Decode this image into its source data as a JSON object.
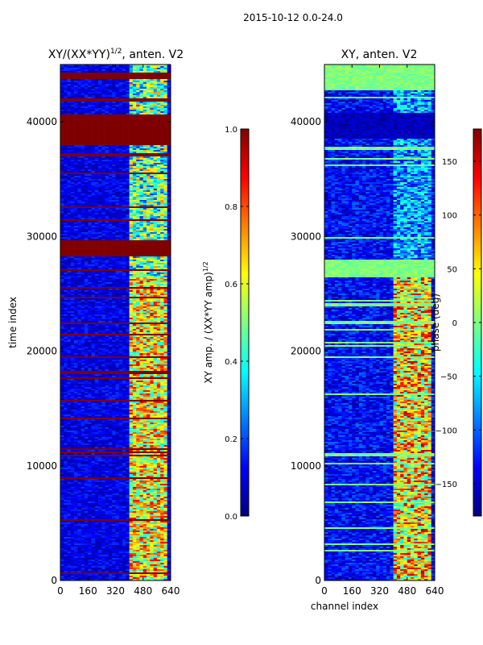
{
  "figure": {
    "suptitle": "2015-10-12 0.0-24.0"
  },
  "colors": {
    "jet": [
      "#00007f",
      "#0000ff",
      "#007fff",
      "#00ffff",
      "#7fff7f",
      "#ffff00",
      "#ff7f00",
      "#ff0000",
      "#7f0000"
    ]
  },
  "chart_data": [
    {
      "type": "heatmap",
      "title": "XY/(XX*YY)",
      "title_exponent": "1/2",
      "title_suffix": ", anten. V2",
      "xlabel": "",
      "ylabel": "time index",
      "xlim": [
        0,
        640
      ],
      "ylim": [
        0,
        45000
      ],
      "xticks": [
        0,
        160,
        320,
        480,
        640
      ],
      "yticks": [
        0,
        10000,
        20000,
        30000,
        40000
      ],
      "colorbar": {
        "label": "XY amp. / (XX*YY amp)",
        "label_exponent": "1/2",
        "range": [
          0.0,
          1.0
        ],
        "ticks": [
          "0.0",
          "0.2",
          "0.4",
          "0.6",
          "0.8",
          "1.0"
        ]
      },
      "features": {
        "signal_channel_range": [
          400,
          620
        ],
        "saturated_time_bands": [
          [
            43700,
            44300
          ],
          [
            38000,
            40500
          ],
          [
            28200,
            29700
          ]
        ]
      }
    },
    {
      "type": "heatmap",
      "title": "XY, anten. V2",
      "xlabel": "channel index",
      "ylabel": "",
      "xlim": [
        0,
        640
      ],
      "ylim": [
        0,
        45000
      ],
      "xticks": [
        0,
        160,
        320,
        480,
        640
      ],
      "yticks": [
        0,
        10000,
        20000,
        30000,
        40000
      ],
      "colorbar": {
        "label": "phase (deg)",
        "range": [
          -180,
          180
        ],
        "ticks": [
          "−150",
          "−100",
          "−50",
          "0",
          "50",
          "100",
          "150"
        ]
      },
      "features": {
        "signal_channel_range": [
          400,
          620
        ],
        "zero_phase_time_bands": [
          [
            26500,
            28000
          ],
          [
            42800,
            45000
          ]
        ],
        "negative_phase_time_band": [
          38500,
          40800
        ]
      }
    }
  ]
}
